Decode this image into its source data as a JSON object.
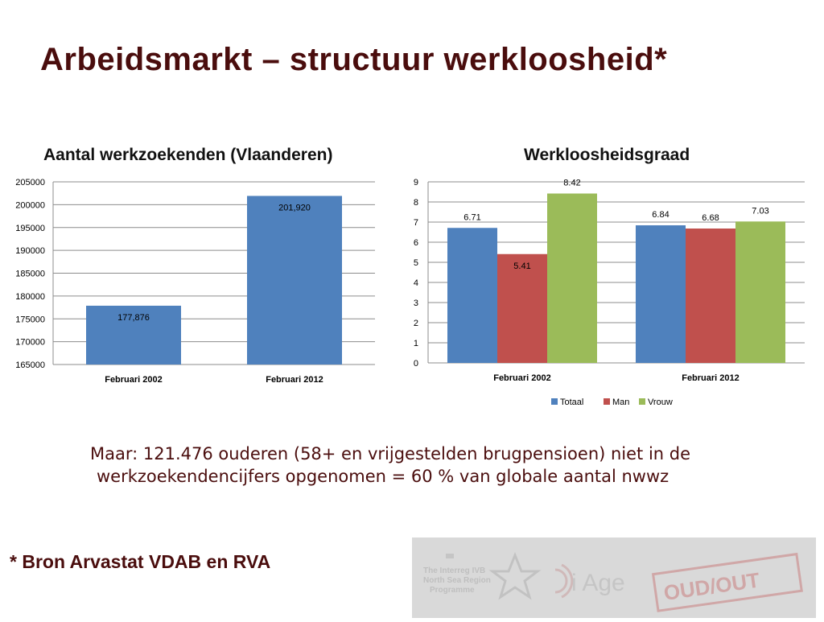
{
  "page": {
    "title": "Arbeidsmarkt – structuur werkloosheid*",
    "note_line1": "Maar: 121.476 ouderen (58+ en vrijgestelden brugpensioen) niet in de",
    "note_line2": "werkzoekendencijfers opgenomen = 60 % van globale aantal nwwz",
    "source": "* Bron Arvastat VDAB en RVA",
    "logos": {
      "left_text": "The Interreg IVB North Sea Region Programme",
      "mid_text": "i Age",
      "stamp_text": "OUD/OUT"
    }
  },
  "chart_data": [
    {
      "type": "bar",
      "title": "Aantal werkzoekenden (Vlaanderen)",
      "categories": [
        "Februari 2002",
        "Februari 2012"
      ],
      "values": [
        177876,
        201920
      ],
      "value_labels": [
        "177,876",
        "201,920"
      ],
      "yticks": [
        "205000",
        "200000",
        "195000",
        "190000",
        "185000",
        "180000",
        "175000",
        "170000",
        "165000"
      ],
      "ylim": [
        165000,
        205000
      ],
      "grid": true,
      "color": "#4f81bd"
    },
    {
      "type": "bar",
      "title": "Werkloosheidsgraad",
      "categories": [
        "Februari 2002",
        "Februari 2012"
      ],
      "series": [
        {
          "name": "Totaal",
          "values": [
            6.71,
            6.84
          ],
          "labels": [
            "6.71",
            "6.84"
          ],
          "color": "#4f81bd"
        },
        {
          "name": "Man",
          "values": [
            5.41,
            6.68
          ],
          "labels": [
            "5.41",
            "6.68"
          ],
          "color": "#c0504d"
        },
        {
          "name": "Vrouw",
          "values": [
            8.42,
            7.03
          ],
          "labels": [
            "8.42",
            "7.03"
          ],
          "color": "#9bbb59"
        }
      ],
      "yticks": [
        "9",
        "8",
        "7",
        "6",
        "5",
        "4",
        "3",
        "2",
        "1",
        "0"
      ],
      "ylim": [
        0,
        9
      ],
      "grid": true,
      "legend": "bottom"
    }
  ]
}
